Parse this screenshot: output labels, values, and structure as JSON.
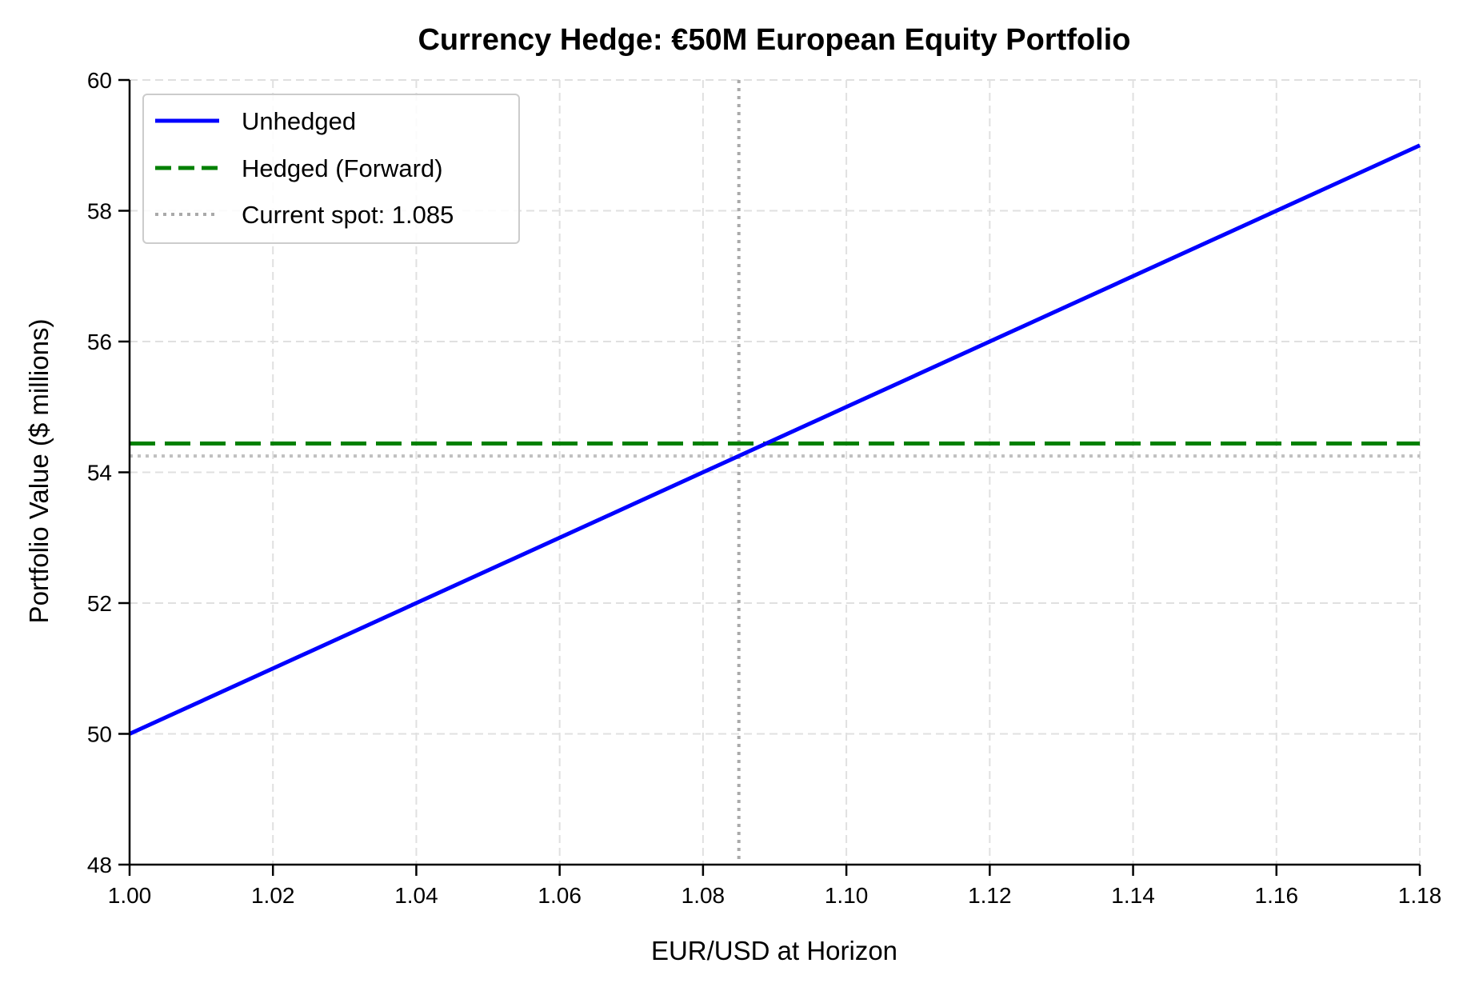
{
  "chart_data": {
    "type": "line",
    "title": "Currency Hedge: €50M European Equity Portfolio",
    "xlabel": "EUR/USD at Horizon",
    "ylabel": "Portfolio Value ($ millions)",
    "xlim": [
      1.0,
      1.18
    ],
    "ylim": [
      48,
      60
    ],
    "xticks": [
      "1.00",
      "1.02",
      "1.04",
      "1.06",
      "1.08",
      "1.10",
      "1.12",
      "1.14",
      "1.16",
      "1.18"
    ],
    "yticks": [
      "48",
      "50",
      "52",
      "54",
      "56",
      "58",
      "60"
    ],
    "grid": true,
    "legend_position": "top-left",
    "series": [
      {
        "name": "Unhedged",
        "style": "solid",
        "color": "#0000ff",
        "x": [
          1.0,
          1.18
        ],
        "y": [
          50.0,
          59.0
        ]
      },
      {
        "name": "Hedged (Forward)",
        "style": "dashed",
        "color": "#008000",
        "x": [
          1.0,
          1.18
        ],
        "y": [
          54.44,
          54.44
        ]
      },
      {
        "name": "Current spot: 1.085",
        "style": "dotted",
        "color": "#aaaaaa",
        "spot_x": 1.085,
        "spot_value": 54.25
      }
    ]
  }
}
